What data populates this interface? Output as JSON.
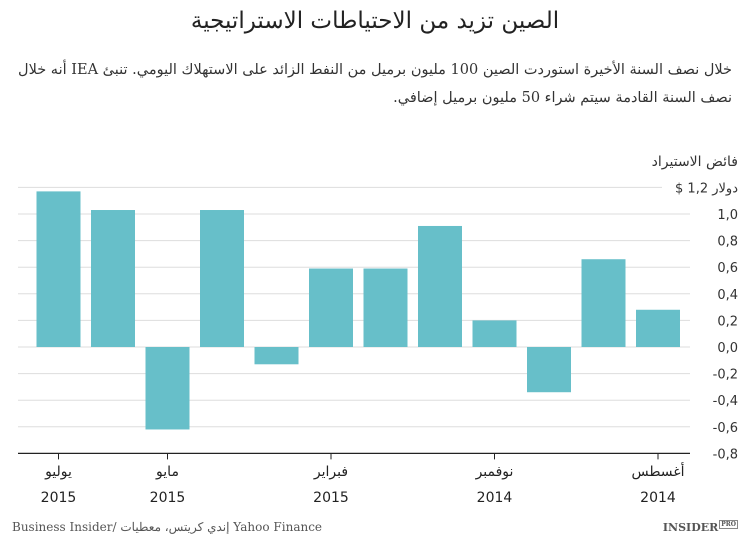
{
  "title": "الصين تزيد من الاحتياطات الاستراتيجية",
  "subtitle": "خلال نصف السنة الأخيرة استوردت الصين 100 مليون برميل من النفط الزائد على الاستهلاك اليومي. تنبئ IEA أنه خلال نصف السنة القادمة سيتم شراء 50 مليون برميل إضافي.",
  "source": "Business Insider/ إندي كريتس، معطيات Yahoo Finance",
  "logo": "INSIDER",
  "logo_badge": "PRO",
  "chart_data": {
    "type": "bar",
    "ylabel": "فائض الاستيراد",
    "ylim": [
      -0.8,
      1.2
    ],
    "yticks": [
      "$ 1,2 دولار",
      "1,0",
      "0,8",
      "0,6",
      "0,4",
      "0,2",
      "0,0",
      "-0,2",
      "-0,4",
      "-0,6",
      "-0,8"
    ],
    "ytick_values": [
      1.2,
      1.0,
      0.8,
      0.6,
      0.4,
      0.2,
      0.0,
      -0.2,
      -0.4,
      -0.6,
      -0.8
    ],
    "grid": true,
    "direction": "right-to-left",
    "bar_color": "#67bfc9",
    "categories": [
      "2014-08",
      "2014-09",
      "2014-10",
      "2014-11",
      "2014-12",
      "2015-01",
      "2015-02",
      "2015-03",
      "2015-04",
      "2015-05",
      "2015-06",
      "2015-07"
    ],
    "values": [
      0.28,
      0.66,
      -0.34,
      0.2,
      0.91,
      0.59,
      0.59,
      -0.13,
      1.03,
      -0.62,
      1.03,
      1.17
    ],
    "xtick_labels": [
      {
        "index": 0,
        "month": "أغسطس",
        "year": "2014"
      },
      {
        "index": 3,
        "month": "نوفمبر",
        "year": "2014"
      },
      {
        "index": 6,
        "month": "فبراير",
        "year": "2015"
      },
      {
        "index": 9,
        "month": "مايو",
        "year": "2015"
      },
      {
        "index": 11,
        "month": "يوليو",
        "year": "2015"
      }
    ]
  }
}
